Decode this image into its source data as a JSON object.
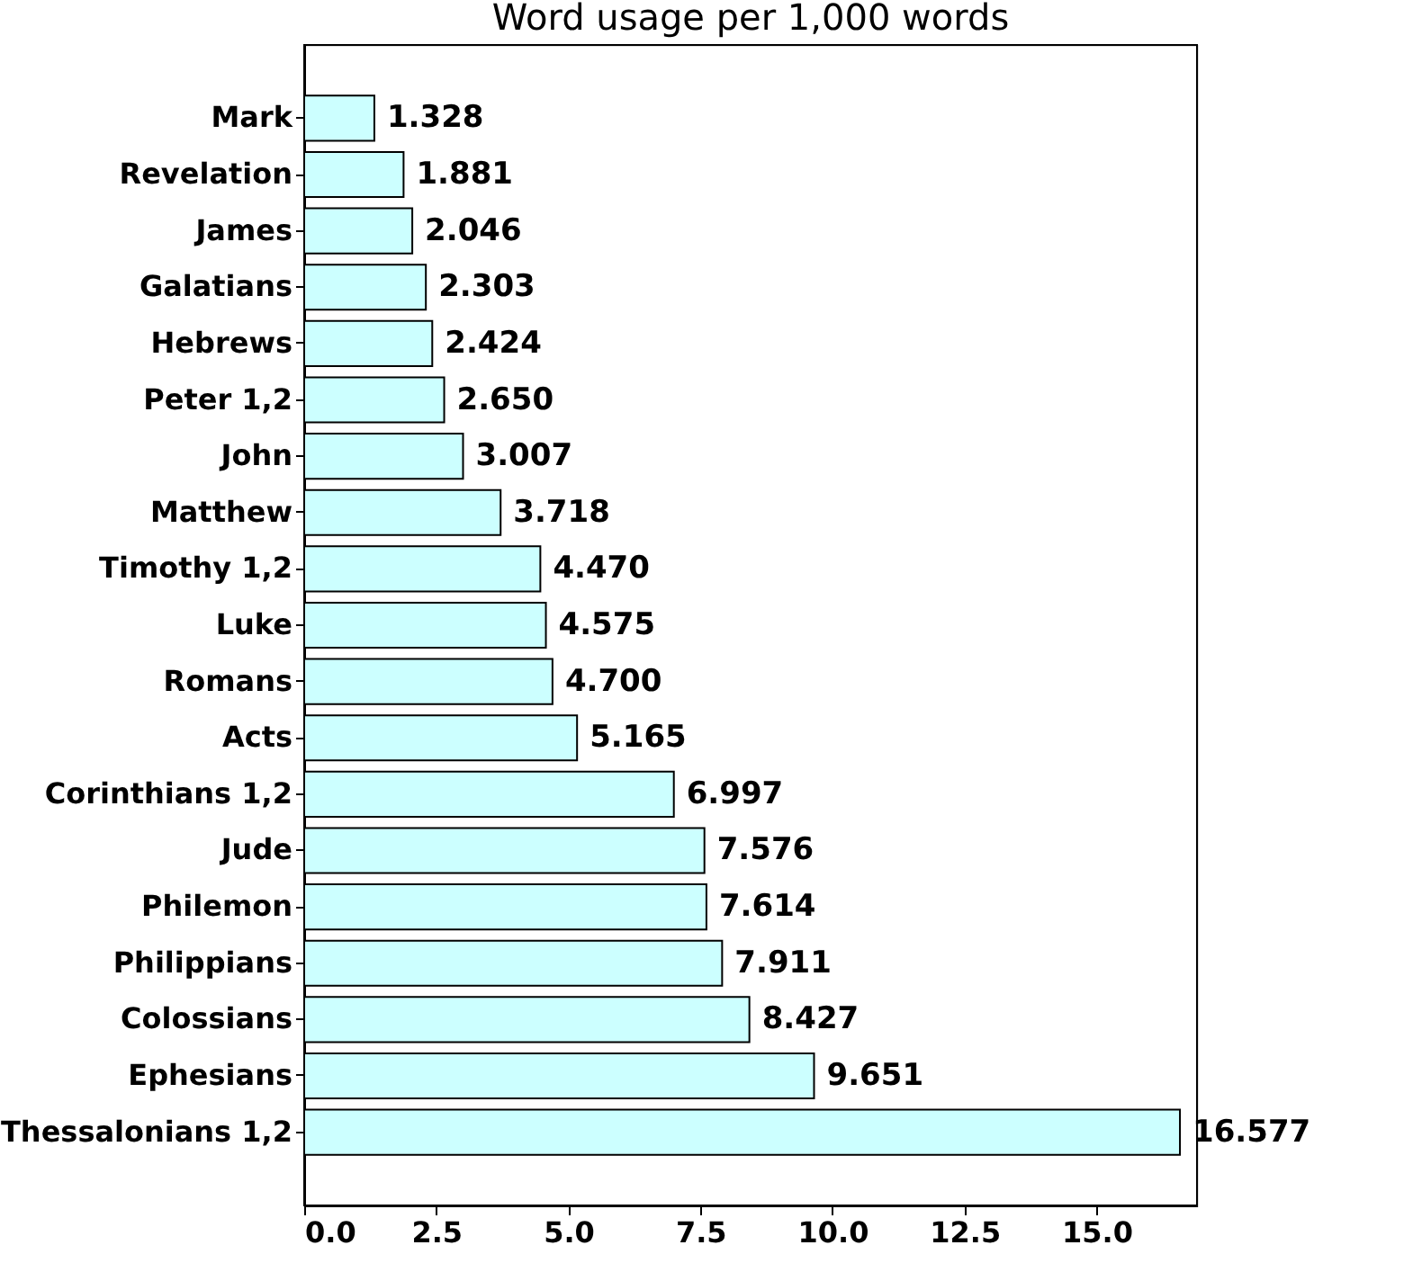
{
  "chart_data": {
    "type": "bar",
    "orientation": "horizontal",
    "title": "Word usage per 1,000 words",
    "categories": [
      "Mark",
      "Revelation",
      "James",
      "Galatians",
      "Hebrews",
      "Peter 1,2",
      "John",
      "Matthew",
      "Timothy 1,2",
      "Luke",
      "Romans",
      "Acts",
      "Corinthians 1,2",
      "Jude",
      "Philemon",
      "Philippians",
      "Colossians",
      "Ephesians",
      "Thessalonians 1,2"
    ],
    "values": [
      1.328,
      1.881,
      2.046,
      2.303,
      2.424,
      2.65,
      3.007,
      3.718,
      4.47,
      4.575,
      4.7,
      5.165,
      6.997,
      7.576,
      7.614,
      7.911,
      8.427,
      9.651,
      16.577
    ],
    "value_labels": [
      "1.328",
      "1.881",
      "2.046",
      "2.303",
      "2.424",
      "2.650",
      "3.007",
      "3.718",
      "4.470",
      "4.575",
      "4.700",
      "5.165",
      "6.997",
      "7.576",
      "7.614",
      "7.911",
      "8.427",
      "9.651",
      "16.577"
    ],
    "color": "#ccffff",
    "xlim": [
      0,
      16.9
    ],
    "xticks": [
      {
        "value": 0,
        "label": "0.0"
      },
      {
        "value": 2.5,
        "label": "2.5"
      },
      {
        "value": 5,
        "label": "5.0"
      },
      {
        "value": 7.5,
        "label": "7.5"
      },
      {
        "value": 10,
        "label": "10.0"
      },
      {
        "value": 12.5,
        "label": "12.5"
      },
      {
        "value": 15,
        "label": "15.0"
      }
    ],
    "grid": false
  }
}
